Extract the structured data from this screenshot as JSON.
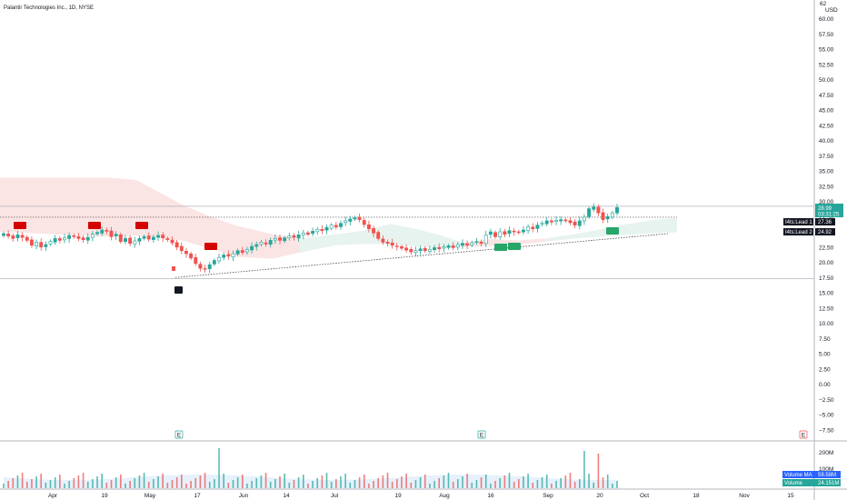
{
  "header": {
    "title": "Palantir Technologies Inc., 1D, NYSE"
  },
  "colors": {
    "up": "#26a69a",
    "down": "#ef5350",
    "hollow_up_fill": "#ffffff",
    "cloud_bull": "#e4f2ec",
    "cloud_bear": "#fbe1e1",
    "marker_red": "#d50000",
    "marker_green": "#27a668",
    "dark": "#131722",
    "volume_bull": "#c8e6c9",
    "volume_bear": "#f8c7c7",
    "volume_ma": "#e3f0fb",
    "blue_label": "#2962ff"
  },
  "chart_data": {
    "type": "candlestick",
    "title": "Palantir Technologies Inc., 1D, NYSE",
    "price_axis": {
      "unit": "USD",
      "ylim": [
        -9,
        62
      ],
      "ticks": [
        "60.00",
        "57.50",
        "55.00",
        "52.50",
        "50.00",
        "47.50",
        "45.00",
        "42.50",
        "40.00",
        "37.50",
        "35.00",
        "32.50",
        "30.00",
        "27.50",
        "25.00",
        "22.50",
        "20.00",
        "17.50",
        "15.00",
        "12.50",
        "10.00",
        "7.50",
        "5.00",
        "2.50",
        "0.00",
        "−2.50",
        "−5.00",
        "−7.50"
      ],
      "top_label": "62",
      "unit_label": "USD"
    },
    "time_axis": {
      "labels": [
        "Apr",
        "19",
        "May",
        "17",
        "Jun",
        "14",
        "Jul",
        "19",
        "Aug",
        "16",
        "Sep",
        "20",
        "Oct",
        "18",
        "Nov",
        "15"
      ]
    },
    "candles_close": [
      24.7,
      24.3,
      23.9,
      24.5,
      24.1,
      23.6,
      22.8,
      23.3,
      22.5,
      22.9,
      23.4,
      23.9,
      23.6,
      24.0,
      24.4,
      24.2,
      23.9,
      23.7,
      24.1,
      24.6,
      24.9,
      25.3,
      25.1,
      24.2,
      24.6,
      23.4,
      23.9,
      23.1,
      23.5,
      23.9,
      24.2,
      23.8,
      24.1,
      24.4,
      24.0,
      23.7,
      23.2,
      22.5,
      21.9,
      21.4,
      20.7,
      19.8,
      19.0,
      18.9,
      19.6,
      20.3,
      20.8,
      21.2,
      21.0,
      21.4,
      21.9,
      21.6,
      22.1,
      22.6,
      22.9,
      23.3,
      23.0,
      23.6,
      23.9,
      23.6,
      24.0,
      24.3,
      24.1,
      24.5,
      24.8,
      24.6,
      25.1,
      25.4,
      25.2,
      25.7,
      26.1,
      25.8,
      26.4,
      26.8,
      27.1,
      27.3,
      27.0,
      26.2,
      25.5,
      24.8,
      23.9,
      23.3,
      23.1,
      22.8,
      22.6,
      22.3,
      22.0,
      21.7,
      21.9,
      22.2,
      21.9,
      22.1,
      22.4,
      22.2,
      22.5,
      22.7,
      22.4,
      22.9,
      23.1,
      22.8,
      23.2,
      23.4,
      23.1,
      24.5,
      25.0,
      24.2,
      25.0,
      24.6,
      25.2,
      25.0,
      24.9,
      25.3,
      25.8,
      25.5,
      26.1,
      26.4,
      26.8,
      26.6,
      26.9,
      27.0,
      26.8,
      26.5,
      26.1,
      26.8,
      27.4,
      28.8,
      29.1,
      28.1,
      27.0,
      27.5,
      28.1,
      28.99
    ],
    "current_price": {
      "value": "28.99",
      "countdown": "03:31:25"
    },
    "indicator_labels": [
      {
        "name": "I4ts:Lead 1",
        "value": "27.36"
      },
      {
        "name": "I4ts:Lead 2",
        "value": "24.92"
      }
    ],
    "horizontal_levels": [
      29.2,
      27.4,
      17.3
    ],
    "trendline": {
      "from": [
        193,
        17.5
      ],
      "to": [
        735,
        24.7
      ]
    },
    "cloud": "ichimoku (lead 1 / lead 2)",
    "earnings_markers": [
      "E",
      "E",
      "E"
    ],
    "volume": {
      "axis_ticks": [
        "200M",
        "100M"
      ],
      "labels": [
        {
          "name": "Volume MA",
          "value": "59.58M"
        },
        {
          "name": "Volume",
          "value": "24.151M"
        }
      ]
    }
  }
}
